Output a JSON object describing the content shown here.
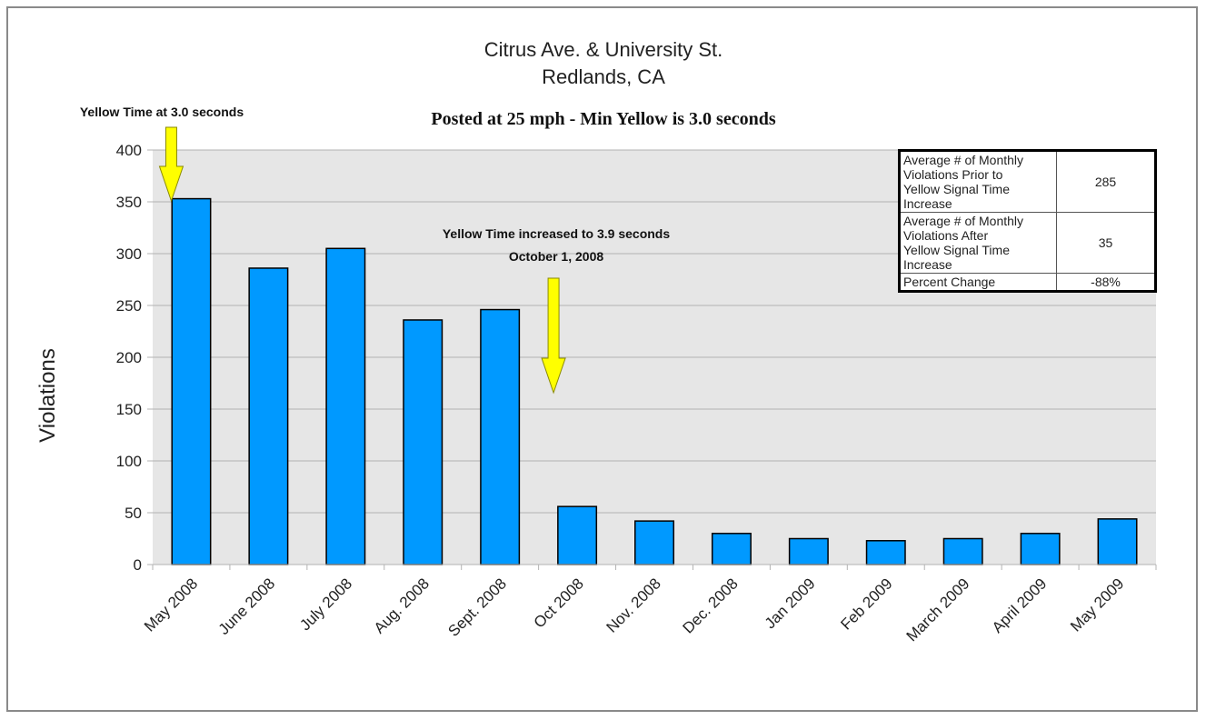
{
  "chart_data": {
    "type": "bar",
    "title_lines": [
      "Citrus Ave. & University St.",
      "Redlands, CA"
    ],
    "subtitle": "Posted at 25 mph - Min Yellow is 3.0 seconds",
    "xlabel": "",
    "ylabel": "Violations",
    "ylim": [
      0,
      400
    ],
    "yticks": [
      0,
      50,
      100,
      150,
      200,
      250,
      300,
      350,
      400
    ],
    "grid": true,
    "categories": [
      "May 2008",
      "June 2008",
      "July 2008",
      "Aug. 2008",
      "Sept. 2008",
      "Oct 2008",
      "Nov. 2008",
      "Dec. 2008",
      "Jan 2009",
      "Feb 2009",
      "March 2009",
      "April 2009",
      "May 2009"
    ],
    "values": [
      353,
      286,
      305,
      236,
      246,
      56,
      42,
      30,
      25,
      23,
      25,
      30,
      44
    ],
    "bar_color": "#0099ff",
    "annotations": [
      {
        "text_lines": [
          "Yellow Time at 3.0 seconds"
        ],
        "category": "May 2008",
        "arrow_color": "#ffff00"
      },
      {
        "text_lines": [
          "Yellow Time increased to 3.9 seconds",
          "October 1, 2008"
        ],
        "category": "Oct 2008",
        "arrow_color": "#ffff00"
      }
    ],
    "legend": "none"
  },
  "stats_table": {
    "rows": [
      {
        "label_lines": [
          "Average # of Monthly",
          "Violations Prior to",
          "Yellow Signal Time",
          "Increase"
        ],
        "value": "285"
      },
      {
        "label_lines": [
          "Average # of Monthly",
          "Violations After",
          "Yellow Signal Time",
          "Increase"
        ],
        "value": "35"
      },
      {
        "label_lines": [
          "Percent Change"
        ],
        "value": "-88%"
      }
    ]
  }
}
